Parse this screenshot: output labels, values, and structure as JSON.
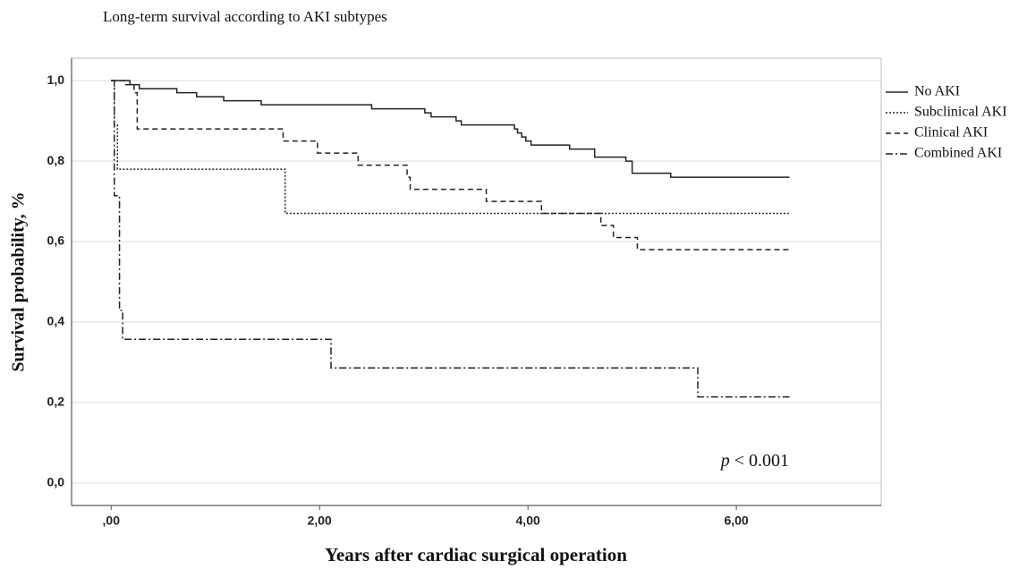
{
  "chart_data": {
    "type": "step",
    "title": "Long-term survival according to AKI subtypes",
    "xlabel": "Years after cardiac surgical operation",
    "ylabel": "Survival probability, %",
    "annotation": {
      "italic": "p",
      "text": "< 0.001"
    },
    "xlim": [
      -0.38,
      7.39
    ],
    "ylim": [
      -0.056,
      1.056
    ],
    "xticks": [
      {
        "value": 0,
        "label": ",00"
      },
      {
        "value": 2,
        "label": "2,00"
      },
      {
        "value": 4,
        "label": "4,00"
      },
      {
        "value": 6,
        "label": "6,00"
      }
    ],
    "yticks": [
      {
        "value": 0,
        "label": "0,0"
      },
      {
        "value": 0.2,
        "label": "0,2"
      },
      {
        "value": 0.4,
        "label": "0,4"
      },
      {
        "value": 0.6,
        "label": "0,6"
      },
      {
        "value": 0.8,
        "label": "0,8"
      },
      {
        "value": 1.0,
        "label": "1,0"
      }
    ],
    "grid": true,
    "series": [
      {
        "name": "No AKI",
        "color": "#222222",
        "style": "solid",
        "x": [
          0,
          0.18,
          0.27,
          0.63,
          0.82,
          1.08,
          1.44,
          2.5,
          3.01,
          3.07,
          3.31,
          3.36,
          3.87,
          3.9,
          3.94,
          3.98,
          4.03,
          4.4,
          4.64,
          4.94,
          5.0,
          5.37,
          6.51
        ],
        "values": [
          1.0,
          0.99,
          0.98,
          0.97,
          0.96,
          0.95,
          0.94,
          0.93,
          0.92,
          0.91,
          0.9,
          0.89,
          0.88,
          0.87,
          0.86,
          0.85,
          0.84,
          0.83,
          0.81,
          0.8,
          0.77,
          0.76,
          0.76
        ]
      },
      {
        "name": "Subclinical AKI",
        "color": "#222222",
        "style": "dotted",
        "x": [
          0,
          0.03,
          0.06,
          1.67,
          6.51
        ],
        "values": [
          1.0,
          0.89,
          0.78,
          0.67,
          0.67
        ]
      },
      {
        "name": "Clinical AKI",
        "color": "#222222",
        "style": "dashed",
        "x": [
          0,
          0.14,
          0.22,
          0.25,
          1.65,
          1.98,
          2.37,
          2.84,
          2.87,
          3.6,
          4.13,
          4.7,
          4.82,
          5.05,
          6.51
        ],
        "values": [
          1.0,
          0.99,
          0.97,
          0.88,
          0.85,
          0.82,
          0.79,
          0.76,
          0.73,
          0.7,
          0.67,
          0.64,
          0.61,
          0.58,
          0.58
        ]
      },
      {
        "name": "Combined AKI",
        "color": "#222222",
        "style": "dashdot",
        "x": [
          0,
          0.03,
          0.08,
          0.11,
          2.11,
          5.63,
          6.51
        ],
        "values": [
          1.0,
          0.714,
          0.429,
          0.357,
          0.286,
          0.214,
          0.214
        ]
      }
    ]
  }
}
